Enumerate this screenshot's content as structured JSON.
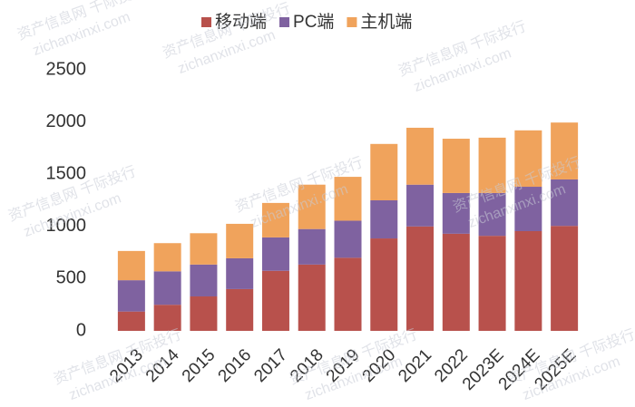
{
  "chart_data": {
    "type": "stacked_bar",
    "categories": [
      "2013",
      "2014",
      "2015",
      "2016",
      "2017",
      "2018",
      "2019",
      "2020",
      "2021",
      "2022",
      "2023E",
      "2024E",
      "2025E"
    ],
    "series": [
      {
        "name": "移动端",
        "color": "#b8514c",
        "values": [
          185,
          250,
          330,
          400,
          575,
          635,
          700,
          885,
          1000,
          930,
          910,
          955,
          1005
        ]
      },
      {
        "name": "PC端",
        "color": "#7f62a0",
        "values": [
          300,
          320,
          305,
          295,
          320,
          340,
          355,
          365,
          400,
          390,
          410,
          425,
          445
        ]
      },
      {
        "name": "主机端",
        "color": "#f0a35c",
        "values": [
          280,
          270,
          300,
          330,
          330,
          425,
          420,
          540,
          545,
          520,
          530,
          540,
          545
        ]
      }
    ],
    "ylim": [
      0,
      2500
    ],
    "yticks": [
      0,
      500,
      1000,
      1500,
      2000,
      2500
    ],
    "grid": false,
    "watermark": [
      "资产信息网 千际投行",
      "zichanxinxi.com"
    ]
  }
}
